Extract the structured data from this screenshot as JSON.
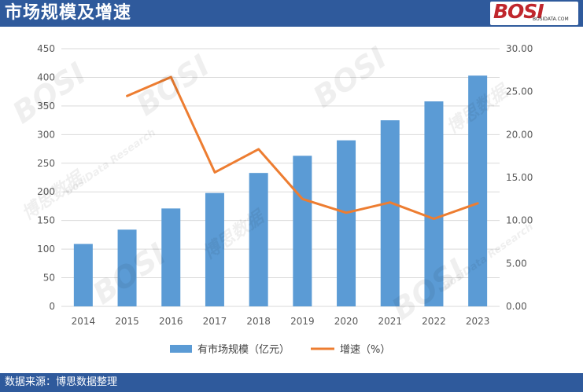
{
  "header": {
    "title": "市场规模及增速"
  },
  "logo": {
    "main": "BOSI",
    "sub": "BOSIDATA.COM"
  },
  "footer": {
    "source": "数据来源：博思数据整理"
  },
  "watermark": {
    "brand": "BOSI",
    "cn": "博思数据",
    "en": "BosiData Research"
  },
  "colors": {
    "bar": "#5b9bd5",
    "line": "#ed7d31",
    "header_bg": "#2f5a9c"
  },
  "chart_data": {
    "type": "bar",
    "categories": [
      "2014",
      "2015",
      "2016",
      "2017",
      "2018",
      "2019",
      "2020",
      "2021",
      "2022",
      "2023"
    ],
    "series": [
      {
        "name": "有市场规模（亿元）",
        "type": "bar",
        "axis": "left",
        "values": [
          109,
          134,
          171,
          198,
          233,
          263,
          290,
          325,
          358,
          403
        ]
      },
      {
        "name": "增速（%）",
        "type": "line",
        "axis": "right",
        "values": [
          null,
          24.5,
          26.7,
          15.6,
          18.3,
          12.5,
          10.9,
          12.1,
          10.2,
          12.0
        ]
      }
    ],
    "ylim": [
      0,
      450
    ],
    "y_ticks": [
      "0",
      "50",
      "100",
      "150",
      "200",
      "250",
      "300",
      "350",
      "400",
      "450"
    ],
    "y2lim": [
      0,
      30
    ],
    "y2_ticks": [
      "0.00",
      "5.00",
      "10.00",
      "15.00",
      "20.00",
      "25.00",
      "30.00"
    ],
    "grid": true,
    "legend": "bottom"
  }
}
